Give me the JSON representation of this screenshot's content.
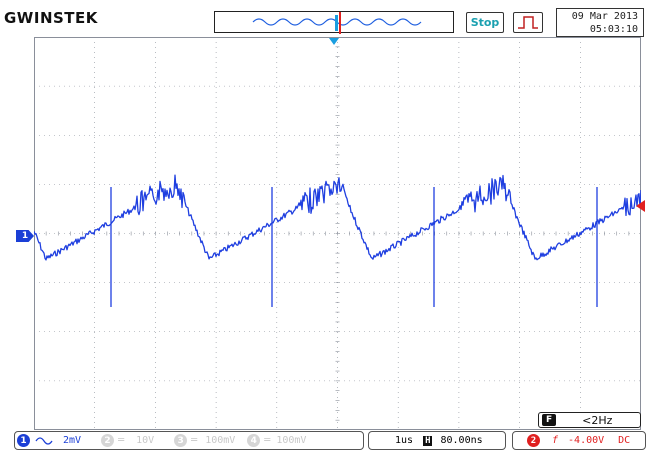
{
  "header": {
    "logo": "GWINSTEK",
    "run_state": "Stop",
    "date": "09 Mar 2013",
    "time": "05:03:10"
  },
  "waveform": {
    "channel": "1",
    "trace_color": "#1f3fe0",
    "grid_color": "#8a8f9a"
  },
  "frequency": {
    "badge": "F",
    "value": "<2Hz"
  },
  "status_bar": {
    "ch1": {
      "num": "1",
      "coupling_icon": "sine-icon",
      "scale": "2mV",
      "color": "#1b3fd6"
    },
    "ch2": {
      "num": "2",
      "scale": "10V"
    },
    "ch3": {
      "num": "3",
      "scale": "100mV"
    },
    "ch4": {
      "num": "4",
      "scale": "100mV"
    },
    "timebase": {
      "scale": "1us",
      "icon": "H",
      "position": "80.00ns"
    },
    "trigger": {
      "num": "2",
      "slope": "f",
      "level": "-4.00V",
      "coupling": "DC",
      "color": "#e02020"
    }
  }
}
